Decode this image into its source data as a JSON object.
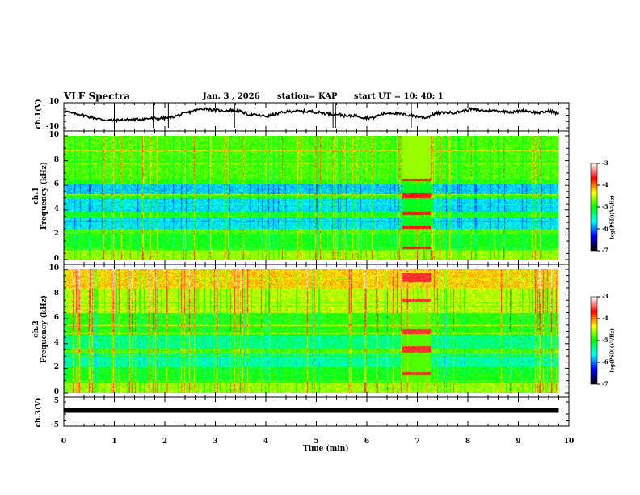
{
  "header": {
    "title": "VLF Spectra",
    "date": "Jan. 3  , 2026",
    "station": "station= KAP",
    "start_ut": "start  UT =   10: 40: 1"
  },
  "chart_data": [
    {
      "type": "line",
      "panel": "ch1-voltage",
      "ylabel": "ch.1(V)",
      "ylim": [
        -10,
        10
      ],
      "yticks": [
        "10",
        "-10"
      ],
      "xlim": [
        0,
        10
      ],
      "x_end": 9.8,
      "series_desc": "noisy waveform roughly between -6 and +7 V",
      "samples": [
        3.5,
        1.5,
        0.5,
        -1.5,
        -3,
        -4,
        -4,
        -3.5,
        -3.5,
        -3,
        -2.5,
        -2.5,
        -2,
        0,
        2,
        4,
        5.5,
        4,
        3.5,
        4,
        3,
        0.5,
        0,
        -1,
        1,
        2.5,
        3.5,
        3,
        3,
        2,
        1,
        1,
        -1,
        0,
        -2,
        -2,
        1,
        2,
        1,
        0,
        -1,
        -2,
        1.5,
        2,
        2,
        3,
        5,
        4,
        3.5,
        3.5,
        3,
        2.5,
        4,
        2.5,
        2,
        3.5,
        1
      ]
    },
    {
      "type": "heatmap",
      "panel": "ch1-spectrogram",
      "ylabel": "ch.1\nFrequency  (kHz)",
      "ylabel_line1": "ch.1",
      "ylabel_line2": "Frequency  (kHz)",
      "ylim": [
        0,
        10
      ],
      "yticks": [
        "0",
        "2",
        "4",
        "6",
        "8",
        "10"
      ],
      "xlim": [
        0,
        10
      ],
      "colorbar": {
        "label": "log(PSD)(V²/Hz)",
        "range": [
          -7,
          -3
        ],
        "ticks": [
          "-3",
          "-4",
          "-5",
          "-6",
          "-7"
        ]
      },
      "event": {
        "x_start": 6.7,
        "x_end": 7.25
      }
    },
    {
      "type": "heatmap",
      "panel": "ch2-spectrogram",
      "ylabel_line1": "ch.2",
      "ylabel_line2": "Frequency  (kHz)",
      "ylim": [
        0,
        10
      ],
      "yticks": [
        "0",
        "2",
        "4",
        "6",
        "8",
        "10"
      ],
      "xlim": [
        0,
        10
      ],
      "colorbar": {
        "label": "log(PSD)(V²/Hz)",
        "range": [
          -7,
          -3
        ],
        "ticks": [
          "-3",
          "-4",
          "-5",
          "-6",
          "-7"
        ]
      },
      "event": {
        "x_start": 6.7,
        "x_end": 7.25
      }
    },
    {
      "type": "line",
      "panel": "ch3-voltage",
      "ylabel": "ch.3(V)",
      "ylim": [
        -5,
        5
      ],
      "yticks": [
        "5",
        "-5"
      ],
      "xlim": [
        0,
        10
      ],
      "x_end": 9.8,
      "constant_value": 1.5
    }
  ],
  "xaxis": {
    "label": "Time  (min)",
    "ticks": [
      "0",
      "1",
      "2",
      "3",
      "4",
      "5",
      "6",
      "7",
      "8",
      "9",
      "10"
    ]
  },
  "colormap": [
    "#000000",
    "#0000ff",
    "#00ffff",
    "#00ff00",
    "#ffff00",
    "#ff0000",
    "#ffffff"
  ]
}
